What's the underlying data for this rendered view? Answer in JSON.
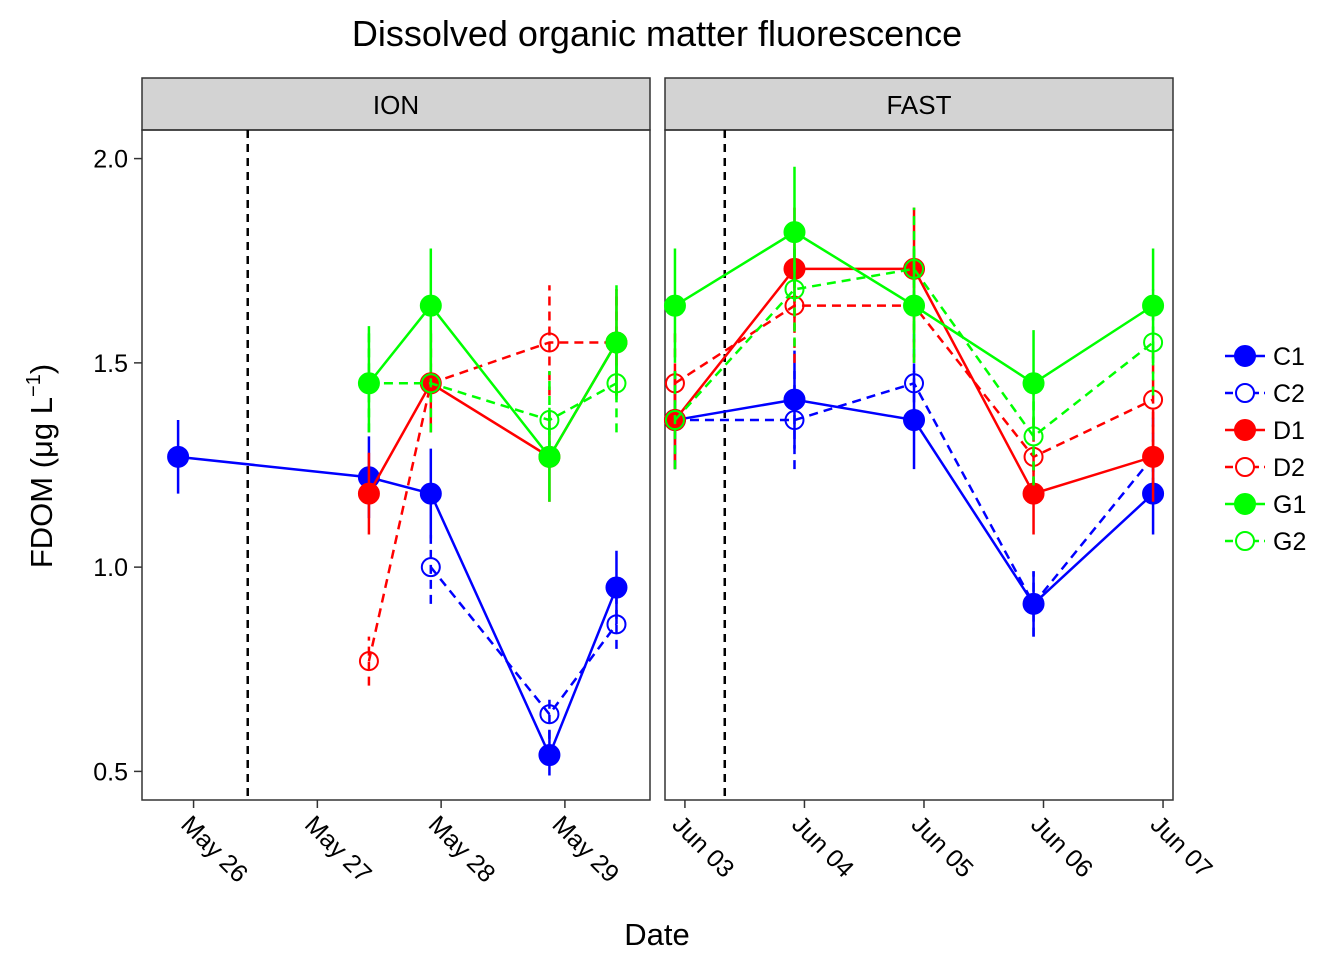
{
  "chart_data": {
    "type": "line",
    "title": "Dissolved organic matter fluorescence",
    "xlabel": "Date",
    "ylabel": "FDOM (μg L⁻¹)",
    "ylabel_parts": {
      "main": "FDOM",
      "unit_prefix": "μg L",
      "superscript": "−1"
    },
    "ylim": [
      0.43,
      2.07
    ],
    "yticks": [
      0.5,
      1.0,
      1.5,
      2.0
    ],
    "ytick_labels": [
      "0.5",
      "1.0",
      "1.5",
      "2.0"
    ],
    "grid": false,
    "legend_position": "right",
    "legend": [
      {
        "name": "C1",
        "color": "#0000FF",
        "filled": true,
        "dashed": false
      },
      {
        "name": "C2",
        "color": "#0000FF",
        "filled": false,
        "dashed": true
      },
      {
        "name": "D1",
        "color": "#FF0000",
        "filled": true,
        "dashed": false
      },
      {
        "name": "D2",
        "color": "#FF0000",
        "filled": false,
        "dashed": true
      },
      {
        "name": "G1",
        "color": "#00FF00",
        "filled": true,
        "dashed": false
      },
      {
        "name": "G2",
        "color": "#00FF00",
        "filled": false,
        "dashed": true
      }
    ],
    "panels": [
      {
        "strip": "ION",
        "xlim": [
          "2025-05-25 14:00",
          "2025-05-29 16:30"
        ],
        "xticks": [
          {
            "date": "2025-05-26 00:00",
            "label": "May 26"
          },
          {
            "date": "2025-05-27 00:00",
            "label": "May 27"
          },
          {
            "date": "2025-05-28 00:00",
            "label": "May 28"
          },
          {
            "date": "2025-05-29 00:00",
            "label": "May 29"
          }
        ],
        "vline": "2025-05-26 10:30",
        "series": [
          {
            "name": "C1",
            "points": [
              {
                "x": "2025-05-25 21:00",
                "y": 1.27,
                "lo": 1.18,
                "hi": 1.36
              },
              {
                "x": "2025-05-27 10:00",
                "y": 1.22,
                "lo": 1.12,
                "hi": 1.32
              },
              {
                "x": "2025-05-27 22:00",
                "y": 1.18,
                "lo": 1.07,
                "hi": 1.29
              },
              {
                "x": "2025-05-28 21:00",
                "y": 0.54,
                "lo": 0.49,
                "hi": 0.6
              },
              {
                "x": "2025-05-29 10:00",
                "y": 0.95,
                "lo": 0.86,
                "hi": 1.04
              }
            ]
          },
          {
            "name": "C2",
            "points": [
              {
                "x": "2025-05-27 22:00",
                "y": 1.0,
                "lo": 0.91,
                "hi": 1.09
              },
              {
                "x": "2025-05-28 21:00",
                "y": 0.64,
                "lo": 0.58,
                "hi": 0.69
              },
              {
                "x": "2025-05-29 10:00",
                "y": 0.86,
                "lo": 0.8,
                "hi": 0.93
              }
            ]
          },
          {
            "name": "D1",
            "points": [
              {
                "x": "2025-05-27 10:00",
                "y": 1.18,
                "lo": 1.08,
                "hi": 1.28
              },
              {
                "x": "2025-05-27 22:00",
                "y": 1.45,
                "lo": 1.33,
                "hi": 1.58
              },
              {
                "x": "2025-05-28 21:00",
                "y": 1.27,
                "lo": 1.16,
                "hi": 1.38
              },
              {
                "x": "2025-05-29 10:00",
                "y": 1.55,
                "lo": 1.42,
                "hi": 1.68
              }
            ]
          },
          {
            "name": "D2",
            "points": [
              {
                "x": "2025-05-27 10:00",
                "y": 0.77,
                "lo": 0.71,
                "hi": 0.83
              },
              {
                "x": "2025-05-27 22:00",
                "y": 1.45,
                "lo": 1.33,
                "hi": 1.58
              },
              {
                "x": "2025-05-28 21:00",
                "y": 1.55,
                "lo": 1.42,
                "hi": 1.69
              },
              {
                "x": "2025-05-29 10:00",
                "y": 1.55,
                "lo": 1.42,
                "hi": 1.68
              }
            ]
          },
          {
            "name": "G1",
            "points": [
              {
                "x": "2025-05-27 10:00",
                "y": 1.45,
                "lo": 1.33,
                "hi": 1.59
              },
              {
                "x": "2025-05-27 22:00",
                "y": 1.64,
                "lo": 1.49,
                "hi": 1.78
              },
              {
                "x": "2025-05-28 21:00",
                "y": 1.27,
                "lo": 1.16,
                "hi": 1.39
              },
              {
                "x": "2025-05-29 10:00",
                "y": 1.55,
                "lo": 1.41,
                "hi": 1.69
              }
            ]
          },
          {
            "name": "G2",
            "points": [
              {
                "x": "2025-05-27 10:00",
                "y": 1.45,
                "lo": 1.33,
                "hi": 1.58
              },
              {
                "x": "2025-05-27 22:00",
                "y": 1.45,
                "lo": 1.33,
                "hi": 1.58
              },
              {
                "x": "2025-05-28 21:00",
                "y": 1.36,
                "lo": 1.25,
                "hi": 1.48
              },
              {
                "x": "2025-05-29 10:00",
                "y": 1.45,
                "lo": 1.33,
                "hi": 1.58
              }
            ]
          }
        ]
      },
      {
        "strip": "FAST",
        "xlim": [
          "2025-06-02 20:00",
          "2025-06-07 02:00"
        ],
        "xticks": [
          {
            "date": "2025-06-03 00:00",
            "label": "Jun 03"
          },
          {
            "date": "2025-06-04 00:00",
            "label": "Jun 04"
          },
          {
            "date": "2025-06-05 00:00",
            "label": "Jun 05"
          },
          {
            "date": "2025-06-06 00:00",
            "label": "Jun 06"
          },
          {
            "date": "2025-06-07 00:00",
            "label": "Jun 07"
          }
        ],
        "vline": "2025-06-03 08:00",
        "series": [
          {
            "name": "C1",
            "points": [
              {
                "x": "2025-06-02 22:00",
                "y": 1.36,
                "lo": 1.24,
                "hi": 1.48
              },
              {
                "x": "2025-06-03 22:00",
                "y": 1.41,
                "lo": 1.29,
                "hi": 1.53
              },
              {
                "x": "2025-06-04 22:00",
                "y": 1.36,
                "lo": 1.24,
                "hi": 1.48
              },
              {
                "x": "2025-06-05 22:00",
                "y": 0.91,
                "lo": 0.83,
                "hi": 0.99
              },
              {
                "x": "2025-06-06 22:00",
                "y": 1.18,
                "lo": 1.08,
                "hi": 1.28
              }
            ]
          },
          {
            "name": "C2",
            "points": [
              {
                "x": "2025-06-02 22:00",
                "y": 1.36,
                "lo": 1.24,
                "hi": 1.48
              },
              {
                "x": "2025-06-03 22:00",
                "y": 1.36,
                "lo": 1.24,
                "hi": 1.48
              },
              {
                "x": "2025-06-04 22:00",
                "y": 1.45,
                "lo": 1.33,
                "hi": 1.58
              },
              {
                "x": "2025-06-05 22:00",
                "y": 0.91,
                "lo": 0.83,
                "hi": 0.99
              },
              {
                "x": "2025-06-06 22:00",
                "y": 1.27,
                "lo": 1.16,
                "hi": 1.38
              }
            ]
          },
          {
            "name": "D1",
            "points": [
              {
                "x": "2025-06-02 22:00",
                "y": 1.36,
                "lo": 1.24,
                "hi": 1.48
              },
              {
                "x": "2025-06-03 22:00",
                "y": 1.73,
                "lo": 1.58,
                "hi": 1.88
              },
              {
                "x": "2025-06-04 22:00",
                "y": 1.73,
                "lo": 1.58,
                "hi": 1.88
              },
              {
                "x": "2025-06-05 22:00",
                "y": 1.18,
                "lo": 1.08,
                "hi": 1.28
              },
              {
                "x": "2025-06-06 22:00",
                "y": 1.27,
                "lo": 1.16,
                "hi": 1.38
              }
            ]
          },
          {
            "name": "D2",
            "points": [
              {
                "x": "2025-06-02 22:00",
                "y": 1.45,
                "lo": 1.33,
                "hi": 1.58
              },
              {
                "x": "2025-06-03 22:00",
                "y": 1.64,
                "lo": 1.5,
                "hi": 1.78
              },
              {
                "x": "2025-06-04 22:00",
                "y": 1.64,
                "lo": 1.5,
                "hi": 1.78
              },
              {
                "x": "2025-06-05 22:00",
                "y": 1.27,
                "lo": 1.16,
                "hi": 1.38
              },
              {
                "x": "2025-06-06 22:00",
                "y": 1.41,
                "lo": 1.29,
                "hi": 1.53
              }
            ]
          },
          {
            "name": "G1",
            "points": [
              {
                "x": "2025-06-02 22:00",
                "y": 1.64,
                "lo": 1.5,
                "hi": 1.78
              },
              {
                "x": "2025-06-03 22:00",
                "y": 1.82,
                "lo": 1.66,
                "hi": 1.98
              },
              {
                "x": "2025-06-04 22:00",
                "y": 1.64,
                "lo": 1.5,
                "hi": 1.78
              },
              {
                "x": "2025-06-05 22:00",
                "y": 1.45,
                "lo": 1.33,
                "hi": 1.58
              },
              {
                "x": "2025-06-06 22:00",
                "y": 1.64,
                "lo": 1.5,
                "hi": 1.78
              }
            ]
          },
          {
            "name": "G2",
            "points": [
              {
                "x": "2025-06-02 22:00",
                "y": 1.36,
                "lo": 1.24,
                "hi": 1.48
              },
              {
                "x": "2025-06-03 22:00",
                "y": 1.68,
                "lo": 1.54,
                "hi": 1.83
              },
              {
                "x": "2025-06-04 22:00",
                "y": 1.73,
                "lo": 1.58,
                "hi": 1.88
              },
              {
                "x": "2025-06-05 22:00",
                "y": 1.32,
                "lo": 1.2,
                "hi": 1.44
              },
              {
                "x": "2025-06-06 22:00",
                "y": 1.55,
                "lo": 1.42,
                "hi": 1.68
              }
            ]
          }
        ]
      }
    ]
  }
}
